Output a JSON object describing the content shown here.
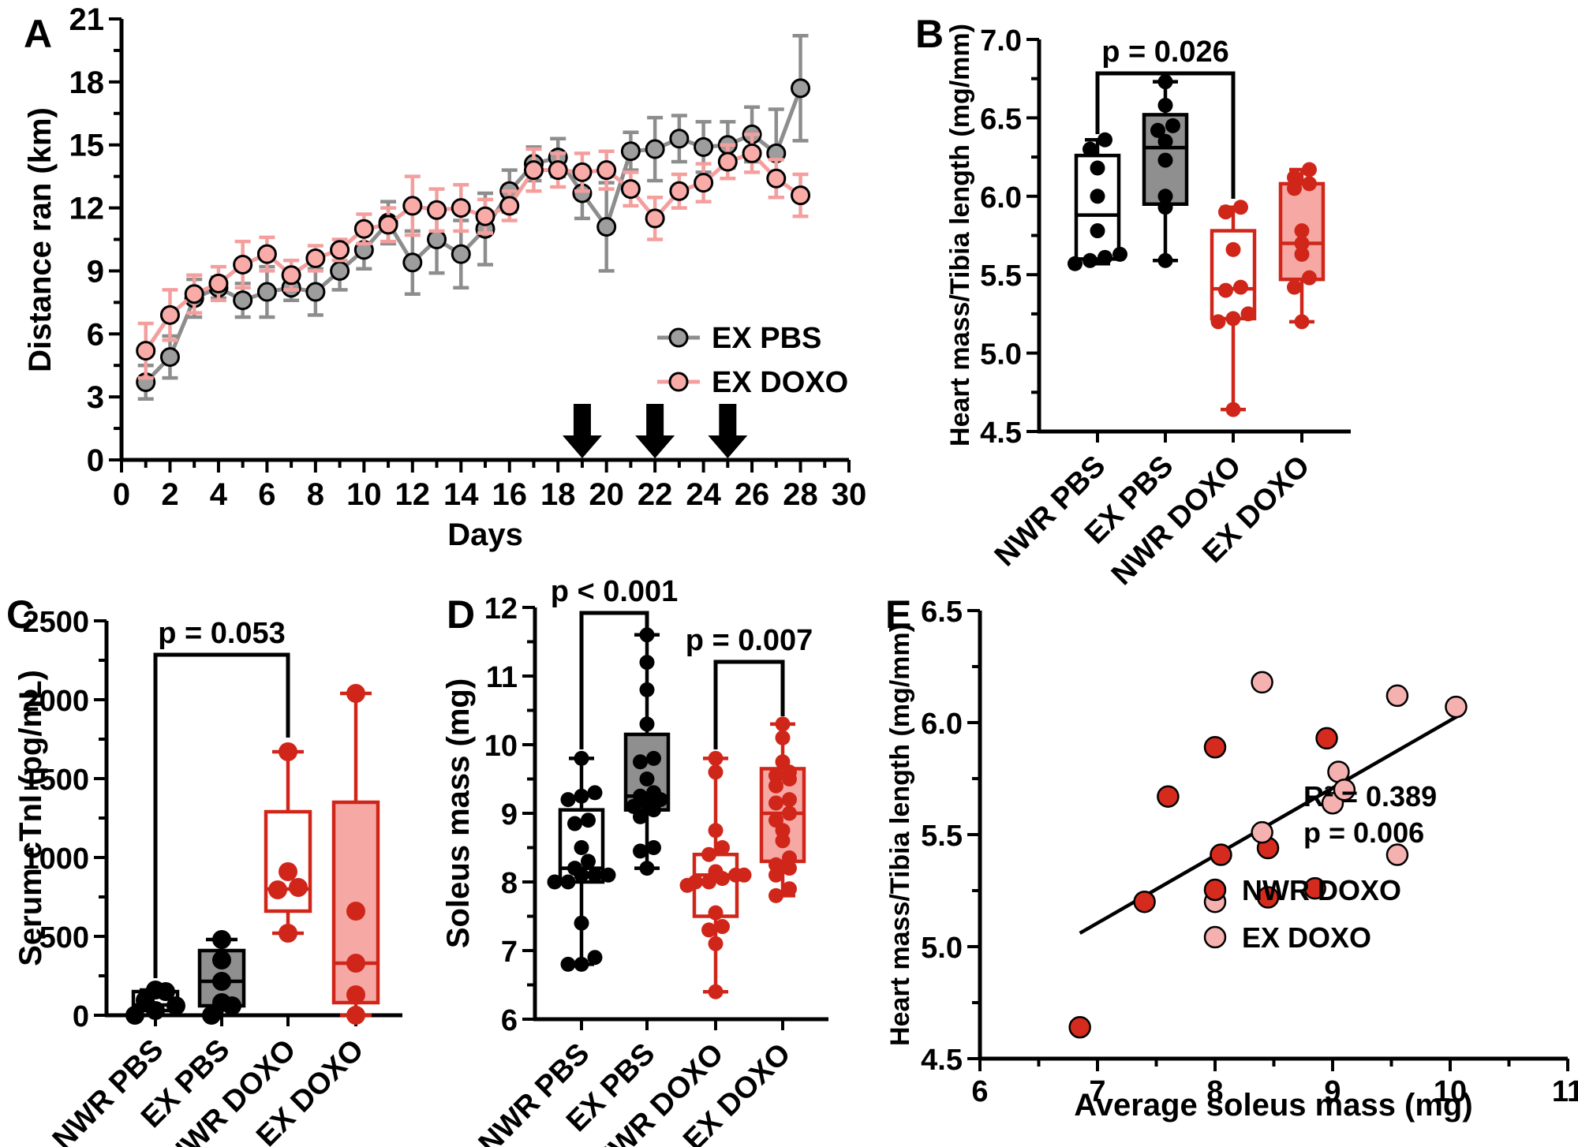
{
  "chart_data": [
    {
      "panel_label": "A",
      "type": "line",
      "xlabel": "Days",
      "ylabel": "Distance ran (km)",
      "xlim": [
        0,
        30
      ],
      "ylim": [
        0,
        21
      ],
      "x_major_ticks": [
        0,
        2,
        4,
        6,
        8,
        10,
        12,
        14,
        16,
        18,
        20,
        22,
        24,
        26,
        28,
        30
      ],
      "y_major_ticks": [
        0,
        3,
        6,
        9,
        12,
        15,
        18,
        21
      ],
      "injection_arrow_days": [
        19,
        22,
        25
      ],
      "series": [
        {
          "name": "EX PBS",
          "color": "#8d8d8d",
          "marker_fill": "#9d9d9d",
          "x": [
            1,
            2,
            3,
            4,
            5,
            6,
            7,
            8,
            9,
            10,
            11,
            12,
            13,
            14,
            15,
            16,
            17,
            18,
            19,
            20,
            21,
            22,
            23,
            24,
            25,
            26,
            27,
            28
          ],
          "y": [
            3.7,
            4.9,
            7.7,
            8.2,
            7.6,
            8.0,
            8.2,
            8.0,
            9.0,
            10.0,
            11.3,
            9.4,
            10.5,
            9.8,
            11.0,
            12.8,
            14.1,
            14.4,
            12.7,
            11.1,
            14.7,
            14.8,
            15.3,
            14.9,
            15.0,
            15.5,
            14.6,
            17.7
          ],
          "err": [
            0.8,
            1.0,
            0.9,
            0.5,
            0.8,
            1.2,
            0.6,
            1.1,
            0.9,
            0.9,
            1.0,
            1.5,
            1.6,
            1.6,
            1.7,
            1.0,
            0.8,
            0.9,
            1.2,
            2.1,
            0.9,
            1.5,
            1.1,
            1.2,
            1.1,
            1.3,
            2.1,
            2.5
          ]
        },
        {
          "name": "EX DOXO",
          "color": "#f49f9d",
          "marker_fill": "#f9aba8",
          "x": [
            1,
            2,
            3,
            4,
            5,
            6,
            7,
            8,
            9,
            10,
            11,
            12,
            13,
            14,
            15,
            16,
            17,
            18,
            19,
            20,
            21,
            22,
            23,
            24,
            25,
            26,
            27,
            28
          ],
          "y": [
            5.2,
            6.9,
            7.9,
            8.4,
            9.3,
            9.8,
            8.8,
            9.6,
            10.0,
            11.0,
            11.2,
            12.1,
            11.9,
            12.0,
            11.6,
            12.1,
            13.8,
            13.8,
            13.7,
            13.8,
            12.9,
            11.5,
            12.8,
            13.2,
            14.2,
            14.6,
            13.4,
            12.6
          ],
          "err": [
            1.3,
            1.2,
            0.9,
            0.8,
            1.1,
            0.8,
            0.7,
            0.6,
            0.5,
            0.7,
            0.8,
            1.4,
            1.0,
            1.1,
            0.8,
            0.7,
            1.0,
            0.8,
            0.9,
            0.9,
            0.8,
            1.0,
            0.8,
            0.9,
            0.8,
            0.9,
            0.9,
            1.0
          ]
        }
      ]
    },
    {
      "panel_label": "B",
      "type": "box",
      "ylabel": "Heart mass/Tibia length (mg/mm)",
      "ylim": [
        4.5,
        7.0
      ],
      "y_major_ticks": [
        4.5,
        5.0,
        5.5,
        6.0,
        6.5,
        7.0
      ],
      "y_tick_decimals": 1,
      "categories": [
        "NWR PBS",
        "EX PBS",
        "NWR DOXO",
        "EX DOXO"
      ],
      "boxes": [
        {
          "category": "NWR PBS",
          "box_fill": "#ffffff",
          "stroke": "#000000",
          "point_color": "#000000",
          "whisker_low": 5.57,
          "q1": 5.6,
          "median": 5.88,
          "q3": 6.26,
          "whisker_high": 6.36,
          "points": [
            5.57,
            5.59,
            5.61,
            5.63,
            5.78,
            6.0,
            6.18,
            6.3,
            6.36
          ]
        },
        {
          "category": "EX PBS",
          "box_fill": "#8f8f8f",
          "stroke": "#000000",
          "point_color": "#000000",
          "whisker_low": 5.59,
          "q1": 5.95,
          "median": 6.31,
          "q3": 6.52,
          "whisker_high": 6.73,
          "points": [
            5.59,
            5.93,
            6.0,
            6.23,
            6.35,
            6.42,
            6.45,
            6.58,
            6.73
          ]
        },
        {
          "category": "NWR DOXO",
          "box_fill": "#ffffff",
          "stroke": "#d0261a",
          "point_color": "#d0261a",
          "whisker_low": 4.64,
          "q1": 5.22,
          "median": 5.41,
          "q3": 5.78,
          "whisker_high": 5.93,
          "points": [
            4.64,
            5.2,
            5.22,
            5.25,
            5.4,
            5.42,
            5.66,
            5.9,
            5.93
          ]
        },
        {
          "category": "EX DOXO",
          "box_fill": "#f5a8a4",
          "stroke": "#d0261a",
          "point_color": "#d0261a",
          "whisker_low": 5.2,
          "q1": 5.47,
          "median": 5.7,
          "q3": 6.08,
          "whisker_high": 6.17,
          "points": [
            5.2,
            5.42,
            5.48,
            5.63,
            5.7,
            5.78,
            6.05,
            6.08,
            6.12,
            6.17
          ]
        }
      ],
      "significance": [
        {
          "label": "p = 0.026",
          "from": 0,
          "to": 2
        }
      ]
    },
    {
      "panel_label": "C",
      "type": "box",
      "ylabel": "Serum cTnI (pg/mL)",
      "ylim": [
        0,
        2500
      ],
      "y_major_ticks": [
        0,
        500,
        1000,
        1500,
        2000,
        2500
      ],
      "y_tick_decimals": 0,
      "categories": [
        "NWR PBS",
        "EX PBS",
        "NWR DOXO",
        "EX DOXO"
      ],
      "boxes": [
        {
          "category": "NWR PBS",
          "box_fill": "#ffffff",
          "stroke": "#000000",
          "point_color": "#000000",
          "whisker_low": 0,
          "q1": 30,
          "median": 65,
          "q3": 150,
          "whisker_high": 160,
          "points": [
            0,
            30,
            60,
            95,
            150,
            160
          ]
        },
        {
          "category": "EX PBS",
          "box_fill": "#8f8f8f",
          "stroke": "#000000",
          "point_color": "#000000",
          "whisker_low": 0,
          "q1": 60,
          "median": 215,
          "q3": 410,
          "whisker_high": 480,
          "points": [
            0,
            60,
            80,
            215,
            350,
            480
          ]
        },
        {
          "category": "NWR DOXO",
          "box_fill": "#ffffff",
          "stroke": "#d0261a",
          "point_color": "#d0261a",
          "whisker_low": 520,
          "q1": 660,
          "median": 800,
          "q3": 1290,
          "whisker_high": 1670,
          "points": [
            520,
            795,
            810,
            910,
            1670
          ]
        },
        {
          "category": "EX DOXO",
          "box_fill": "#f5a8a4",
          "stroke": "#d0261a",
          "point_color": "#d0261a",
          "whisker_low": 0,
          "q1": 80,
          "median": 330,
          "q3": 1350,
          "whisker_high": 2040,
          "points": [
            0,
            130,
            330,
            660,
            2040
          ]
        }
      ],
      "significance": [
        {
          "label": "p = 0.053",
          "from": 0,
          "to": 2
        }
      ]
    },
    {
      "panel_label": "D",
      "type": "box",
      "ylabel": "Soleus mass (mg)",
      "ylim": [
        6,
        12
      ],
      "y_major_ticks": [
        6,
        7,
        8,
        9,
        10,
        11,
        12
      ],
      "y_tick_decimals": 0,
      "categories": [
        "NWR PBS",
        "EX PBS",
        "NWR DOXO",
        "EX DOXO"
      ],
      "boxes": [
        {
          "category": "NWR PBS",
          "box_fill": "#ffffff",
          "stroke": "#000000",
          "point_color": "#000000",
          "whisker_low": 6.8,
          "q1": 8.0,
          "median": 8.2,
          "q3": 9.05,
          "whisker_high": 9.8,
          "points": [
            6.8,
            6.8,
            6.9,
            7.4,
            8.0,
            8.0,
            8.1,
            8.1,
            8.1,
            8.2,
            8.3,
            8.5,
            8.85,
            8.9,
            9.2,
            9.25,
            9.3,
            9.8
          ]
        },
        {
          "category": "EX PBS",
          "box_fill": "#8f8f8f",
          "stroke": "#000000",
          "point_color": "#000000",
          "whisker_low": 8.2,
          "q1": 9.05,
          "median": 9.25,
          "q3": 10.15,
          "whisker_high": 11.6,
          "points": [
            8.2,
            8.45,
            8.5,
            8.95,
            9.05,
            9.1,
            9.15,
            9.2,
            9.25,
            9.3,
            9.5,
            9.75,
            9.8,
            10.3,
            10.8,
            11.2,
            11.6
          ]
        },
        {
          "category": "NWR DOXO",
          "box_fill": "#ffffff",
          "stroke": "#d0261a",
          "point_color": "#d0261a",
          "whisker_low": 6.4,
          "q1": 7.5,
          "median": 8.1,
          "q3": 8.4,
          "whisker_high": 9.8,
          "points": [
            6.4,
            7.1,
            7.3,
            7.35,
            7.55,
            7.95,
            8.0,
            8.0,
            8.05,
            8.1,
            8.1,
            8.15,
            8.4,
            8.5,
            8.75,
            9.6,
            9.8
          ]
        },
        {
          "category": "EX DOXO",
          "box_fill": "#f5a8a4",
          "stroke": "#d0261a",
          "point_color": "#d0261a",
          "whisker_low": 7.8,
          "q1": 8.3,
          "median": 9.0,
          "q3": 9.65,
          "whisker_high": 10.3,
          "points": [
            7.8,
            7.9,
            8.1,
            8.2,
            8.25,
            8.35,
            8.6,
            8.75,
            8.9,
            9.0,
            9.15,
            9.2,
            9.4,
            9.5,
            9.55,
            9.6,
            9.75,
            10.1,
            10.3
          ]
        }
      ],
      "significance": [
        {
          "label": "p < 0.001",
          "from": 0,
          "to": 1
        },
        {
          "label": "p = 0.007",
          "from": 2,
          "to": 3
        }
      ]
    },
    {
      "panel_label": "E",
      "type": "scatter",
      "xlabel": "Average soleus mass (mg)",
      "ylabel": "Heart mass/Tibia length (mg/mm)",
      "xlim": [
        6,
        11
      ],
      "ylim": [
        4.5,
        6.5
      ],
      "x_major_ticks": [
        6,
        7,
        8,
        9,
        10,
        11
      ],
      "y_major_ticks": [
        4.5,
        5.0,
        5.5,
        6.0,
        6.5
      ],
      "y_tick_decimals": 1,
      "annotations": [
        "R² = 0.389",
        "p = 0.006"
      ],
      "trend_line": {
        "x1": 6.85,
        "y1": 5.06,
        "x2": 10.1,
        "y2": 6.04
      },
      "series": [
        {
          "name": "NWR DOXO",
          "color": "#d52b1e",
          "points": [
            [
              6.85,
              4.64
            ],
            [
              7.4,
              5.2
            ],
            [
              7.6,
              5.67
            ],
            [
              8.0,
              5.89
            ],
            [
              8.05,
              5.41
            ],
            [
              8.45,
              5.22
            ],
            [
              8.45,
              5.44
            ],
            [
              8.85,
              5.26
            ],
            [
              8.95,
              5.93
            ]
          ]
        },
        {
          "name": "EX DOXO",
          "color": "#f5b0b0",
          "points": [
            [
              8.0,
              5.2
            ],
            [
              8.4,
              5.51
            ],
            [
              8.4,
              6.18
            ],
            [
              9.0,
              5.64
            ],
            [
              9.05,
              5.78
            ],
            [
              9.1,
              5.7
            ],
            [
              9.55,
              5.41
            ],
            [
              9.55,
              6.12
            ],
            [
              10.05,
              6.07
            ]
          ]
        }
      ]
    }
  ]
}
